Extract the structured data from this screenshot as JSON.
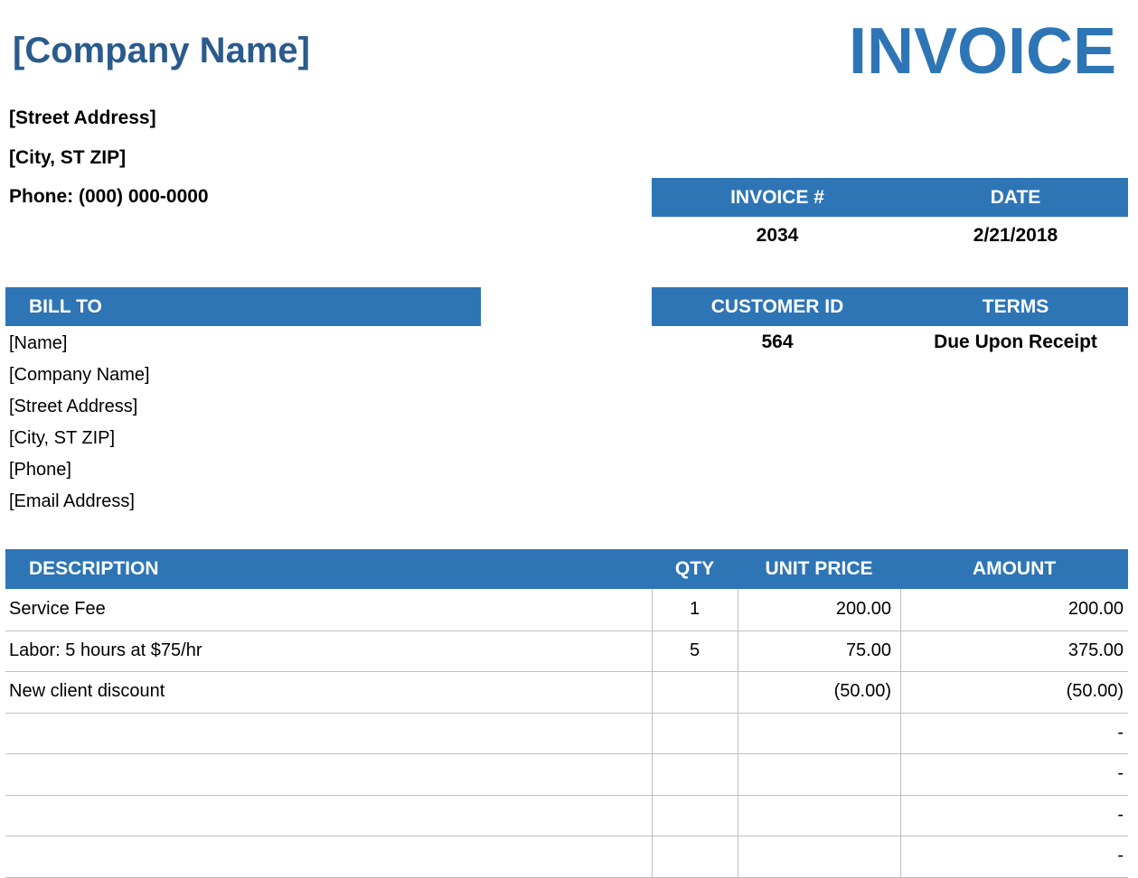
{
  "header": {
    "company_name": "[Company Name]",
    "title": "INVOICE"
  },
  "sender": {
    "street": "[Street Address]",
    "city": "[City, ST  ZIP]",
    "phone": "Phone: (000) 000-0000"
  },
  "invoice_info": {
    "headers": [
      "INVOICE #",
      "DATE"
    ],
    "values": [
      2034,
      "2/21/2018"
    ]
  },
  "customer_info": {
    "headers": [
      "CUSTOMER ID",
      "TERMS"
    ],
    "values": [
      564,
      "Due Upon Receipt"
    ]
  },
  "bill_to": {
    "title": "BILL TO",
    "lines": [
      "[Name]",
      "[Company Name]",
      "[Street Address]",
      "[City, ST  ZIP]",
      "[Phone]",
      "[Email Address]"
    ]
  },
  "items": {
    "headers": {
      "description": "DESCRIPTION",
      "qty": "QTY",
      "unit_price": "UNIT PRICE",
      "amount": "AMOUNT"
    },
    "rows": [
      {
        "description": "Service Fee",
        "qty": 1,
        "unit_price": "200.00",
        "amount": "200.00"
      },
      {
        "description": "Labor: 5 hours at $75/hr",
        "qty": 5,
        "unit_price": "75.00",
        "amount": "375.00"
      },
      {
        "description": "New client discount",
        "unit_price": "(50.00)",
        "amount": "(50.00)"
      },
      {
        "amount": "-"
      },
      {
        "amount": "-"
      },
      {
        "amount": "-"
      },
      {
        "amount": "-"
      }
    ]
  }
}
